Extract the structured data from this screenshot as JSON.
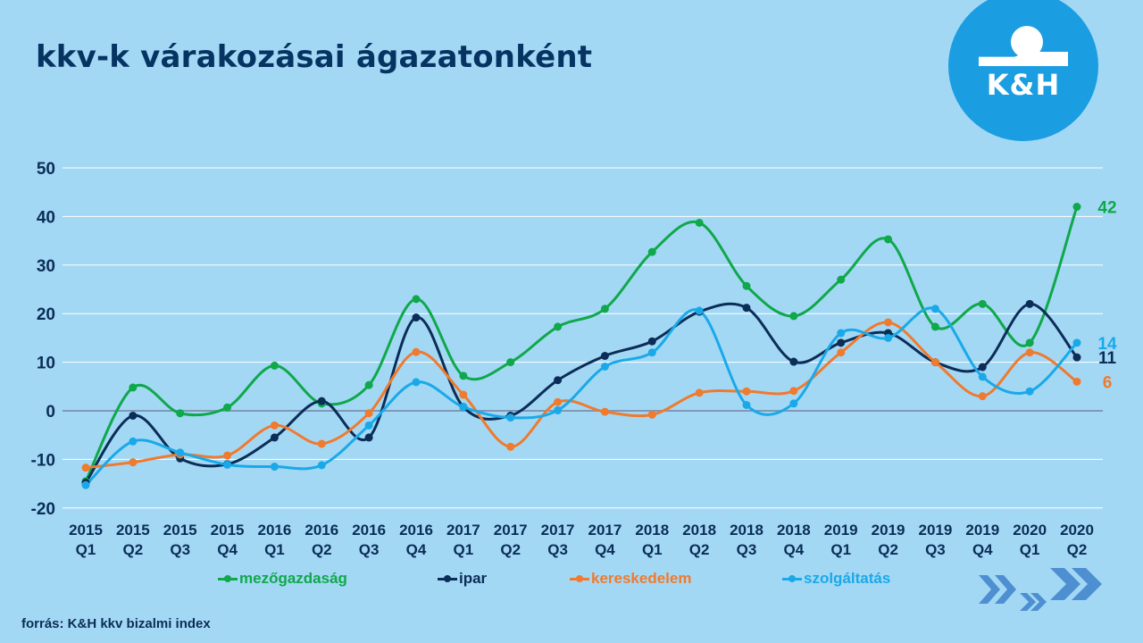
{
  "title": "kkv-k várakozásai ágazatonként",
  "logo": {
    "text": "K&H",
    "color": "#1b9de2"
  },
  "source": "forrás: K&H kkv bizalmi index",
  "decoration": "chevron-arrows",
  "chart_data": {
    "type": "line",
    "smooth": true,
    "title": "kkv-k várakozásai ágazatonként",
    "xlabel": "",
    "ylabel": "",
    "ylim": [
      -20,
      50
    ],
    "yticks": [
      50,
      40,
      30,
      20,
      10,
      0,
      -10,
      -20
    ],
    "grid": true,
    "legend_position": "bottom",
    "categories": [
      [
        "2015",
        "Q1"
      ],
      [
        "2015",
        "Q2"
      ],
      [
        "2015",
        "Q3"
      ],
      [
        "2015",
        "Q4"
      ],
      [
        "2016",
        "Q1"
      ],
      [
        "2016",
        "Q2"
      ],
      [
        "2016",
        "Q3"
      ],
      [
        "2016",
        "Q4"
      ],
      [
        "2017",
        "Q1"
      ],
      [
        "2017",
        "Q2"
      ],
      [
        "2017",
        "Q3"
      ],
      [
        "2017",
        "Q4"
      ],
      [
        "2018",
        "Q1"
      ],
      [
        "2018",
        "Q2"
      ],
      [
        "2018",
        "Q3"
      ],
      [
        "2018",
        "Q4"
      ],
      [
        "2019",
        "Q1"
      ],
      [
        "2019",
        "Q2"
      ],
      [
        "2019",
        "Q3"
      ],
      [
        "2019",
        "Q4"
      ],
      [
        "2020",
        "Q1"
      ],
      [
        "2020",
        "Q2"
      ]
    ],
    "series": [
      {
        "name": "mezőgazdaság",
        "color": "#0fa84a",
        "end_label": "42",
        "values": [
          -14.5,
          4.8,
          -0.5,
          0.7,
          9.3,
          1.5,
          5.3,
          23,
          7.2,
          10,
          17.3,
          21,
          32.7,
          38.7,
          25.7,
          19.5,
          27,
          35.3,
          17.3,
          22,
          14,
          42
        ]
      },
      {
        "name": "ipar",
        "color": "#0b2d57",
        "end_label": "11",
        "values": [
          -14.8,
          -1,
          -9.8,
          -11,
          -5.5,
          2,
          -5.5,
          19.2,
          0.8,
          -1,
          6.3,
          11.3,
          14.3,
          20.4,
          21.2,
          10.1,
          14,
          16,
          10,
          9,
          22,
          11
        ]
      },
      {
        "name": "kereskedelem",
        "color": "#f07a2e",
        "end_label": "6",
        "values": [
          -11.7,
          -10.6,
          -9,
          -9.2,
          -3,
          -6.8,
          -0.5,
          12.1,
          3.3,
          -7.4,
          1.8,
          -0.2,
          -0.8,
          3.7,
          4,
          4.1,
          12,
          18.2,
          10,
          3,
          12,
          6
        ]
      },
      {
        "name": "szolgáltatás",
        "color": "#1aa9e8",
        "end_label": "14",
        "values": [
          -15.3,
          -6.3,
          -8.6,
          -11.1,
          -11.5,
          -11.2,
          -3,
          5.9,
          0.8,
          -1.4,
          0.1,
          9.1,
          12,
          20.6,
          1.2,
          1.5,
          16,
          15,
          21,
          7,
          4,
          14
        ]
      }
    ]
  }
}
